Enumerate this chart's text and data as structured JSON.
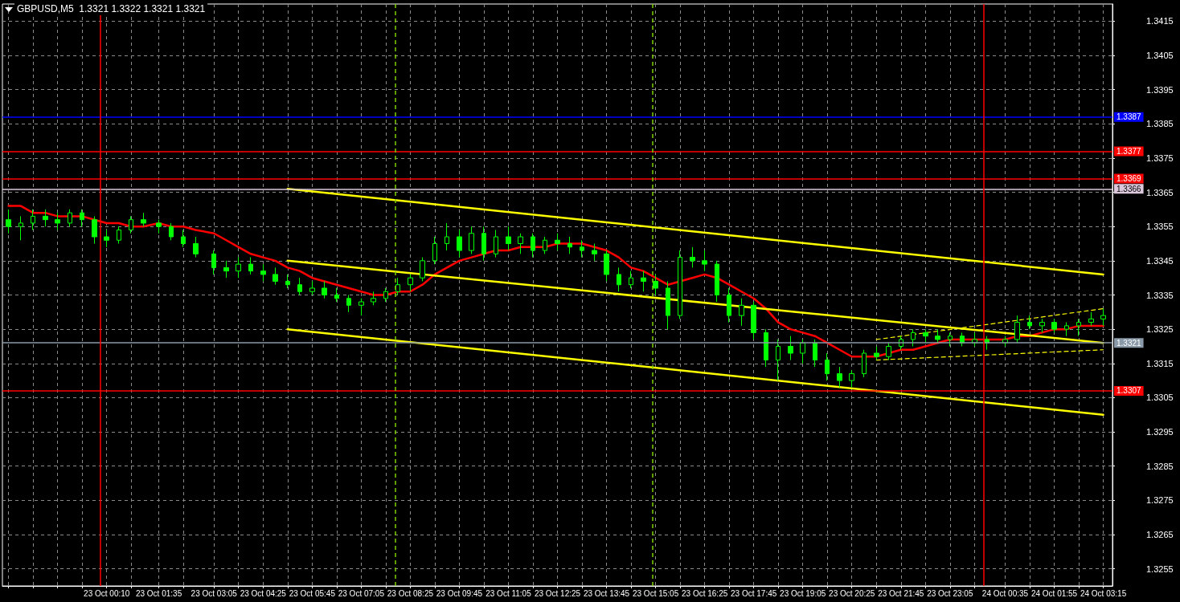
{
  "chart_data": {
    "type": "candlestick",
    "title": "GBPUSD,M5  1.3321 1.3322 1.3321 1.3321",
    "color": "#00ff00",
    "grid": true,
    "marker": "none",
    "x": [
      "--10-22T21:30",
      "--10-22T21:50",
      "--10-22T22:10",
      "--10-22T22:30",
      "--10-22T22:50",
      "--10-22T23:10",
      "--10-22T23:30",
      "--10-22T23:50",
      "--10-23T00:10",
      "--10-23T00:30",
      "--10-23T00:50",
      "--10-23T01:10",
      "--10-23T01:35",
      "--10-23T01:55",
      "--10-23T02:15",
      "--10-23T02:35",
      "--10-23T03:05",
      "--10-23T03:25",
      "--10-23T03:45",
      "--10-23T04:05",
      "--10-23T04:25",
      "--10-23T04:45",
      "--10-23T05:05",
      "--10-23T05:25",
      "--10-23T05:45",
      "--10-23T06:05",
      "--10-23T06:25",
      "--10-23T06:45",
      "--10-23T07:05",
      "--10-23T07:25",
      "--10-23T07:45",
      "--10-23T08:05",
      "--10-23T08:25",
      "--10-23T08:45",
      "--10-23T09:05",
      "--10-23T09:25",
      "--10-23T09:45",
      "--10-23T10:05",
      "--10-23T10:25",
      "--10-23T10:45",
      "--10-23T11:05",
      "--10-23T11:25",
      "--10-23T11:45",
      "--10-23T12:05",
      "--10-23T12:25",
      "--10-23T12:45",
      "--10-23T13:05",
      "--10-23T13:25",
      "--10-23T13:45",
      "--10-23T14:05",
      "--10-23T14:25",
      "--10-23T14:45",
      "--10-23T15:05",
      "--10-23T15:25",
      "--10-23T15:45",
      "--10-23T16:05",
      "--10-23T16:25",
      "--10-23T16:45",
      "--10-23T17:05",
      "--10-23T17:25",
      "--10-23T17:45",
      "--10-23T18:05",
      "--10-23T18:25",
      "--10-23T18:45",
      "--10-23T19:05",
      "--10-23T19:25",
      "--10-23T19:45",
      "--10-23T20:05",
      "--10-23T20:25",
      "--10-23T20:45",
      "--10-23T21:05",
      "--10-23T21:25",
      "--10-23T21:45",
      "--10-23T22:05",
      "--10-23T22:25",
      "--10-23T22:45",
      "--10-23T23:05",
      "--10-23T23:25",
      "--10-23T23:45",
      "--10-24T00:05",
      "--10-24T00:35",
      "--10-24T00:55",
      "--10-24T01:15",
      "--10-24T01:35",
      "--10-24T01:55",
      "--10-24T02:15",
      "--10-24T02:35",
      "--10-24T02:55",
      "--10-24T03:15"
    ],
    "ohlc": [
      [
        1.3357,
        1.336,
        1.3353,
        1.3355
      ],
      [
        1.3355,
        1.3358,
        1.3351,
        1.3356
      ],
      [
        1.3356,
        1.336,
        1.3354,
        1.3358
      ],
      [
        1.3358,
        1.336,
        1.3355,
        1.3357
      ],
      [
        1.3357,
        1.3359,
        1.3354,
        1.3356
      ],
      [
        1.3356,
        1.336,
        1.3355,
        1.3359
      ],
      [
        1.3359,
        1.336,
        1.3355,
        1.3357
      ],
      [
        1.3357,
        1.3358,
        1.335,
        1.3352
      ],
      [
        1.3352,
        1.3354,
        1.3349,
        1.3351
      ],
      [
        1.3351,
        1.3355,
        1.335,
        1.3354
      ],
      [
        1.3354,
        1.3358,
        1.3353,
        1.3357
      ],
      [
        1.3357,
        1.3359,
        1.3355,
        1.3356
      ],
      [
        1.3356,
        1.3357,
        1.3353,
        1.3355
      ],
      [
        1.3355,
        1.3356,
        1.3351,
        1.3352
      ],
      [
        1.3352,
        1.3354,
        1.3349,
        1.335
      ],
      [
        1.335,
        1.3352,
        1.3346,
        1.3347
      ],
      [
        1.3347,
        1.3348,
        1.3341,
        1.3343
      ],
      [
        1.3343,
        1.3345,
        1.334,
        1.3342
      ],
      [
        1.3342,
        1.3346,
        1.334,
        1.3344
      ],
      [
        1.3344,
        1.3346,
        1.3341,
        1.3342
      ],
      [
        1.3342,
        1.3344,
        1.3339,
        1.3341
      ],
      [
        1.3341,
        1.3343,
        1.3338,
        1.3339
      ],
      [
        1.3339,
        1.3341,
        1.3337,
        1.3338
      ],
      [
        1.3338,
        1.334,
        1.3335,
        1.3336
      ],
      [
        1.3336,
        1.3339,
        1.3335,
        1.3337
      ],
      [
        1.3337,
        1.3339,
        1.3334,
        1.3335
      ],
      [
        1.3335,
        1.3337,
        1.3333,
        1.3334
      ],
      [
        1.3334,
        1.3335,
        1.333,
        1.3332
      ],
      [
        1.3332,
        1.3334,
        1.3329,
        1.3333
      ],
      [
        1.3333,
        1.3336,
        1.3332,
        1.3334
      ],
      [
        1.3334,
        1.3337,
        1.3333,
        1.3336
      ],
      [
        1.3336,
        1.334,
        1.3335,
        1.3338
      ],
      [
        1.3338,
        1.3341,
        1.3336,
        1.334
      ],
      [
        1.334,
        1.3346,
        1.3339,
        1.3345
      ],
      [
        1.3345,
        1.3352,
        1.3344,
        1.335
      ],
      [
        1.335,
        1.3356,
        1.3348,
        1.3352
      ],
      [
        1.3352,
        1.3354,
        1.3346,
        1.3348
      ],
      [
        1.3348,
        1.3355,
        1.3347,
        1.3353
      ],
      [
        1.3353,
        1.3355,
        1.3345,
        1.3347
      ],
      [
        1.3347,
        1.3354,
        1.3346,
        1.3352
      ],
      [
        1.3352,
        1.3355,
        1.3348,
        1.335
      ],
      [
        1.335,
        1.3353,
        1.3347,
        1.3352
      ],
      [
        1.3352,
        1.3353,
        1.3346,
        1.3348
      ],
      [
        1.3348,
        1.3352,
        1.3347,
        1.3351
      ],
      [
        1.3351,
        1.3353,
        1.3348,
        1.335
      ],
      [
        1.335,
        1.3352,
        1.3347,
        1.3349
      ],
      [
        1.3349,
        1.3351,
        1.3346,
        1.3348
      ],
      [
        1.3348,
        1.335,
        1.3345,
        1.3347
      ],
      [
        1.3347,
        1.3348,
        1.3339,
        1.3341
      ],
      [
        1.3341,
        1.3343,
        1.3336,
        1.3338
      ],
      [
        1.3338,
        1.3342,
        1.3337,
        1.334
      ],
      [
        1.334,
        1.3342,
        1.3336,
        1.3339
      ],
      [
        1.3339,
        1.3341,
        1.3335,
        1.3337
      ],
      [
        1.3337,
        1.3339,
        1.3325,
        1.3329
      ],
      [
        1.3329,
        1.3348,
        1.3328,
        1.3346
      ],
      [
        1.3346,
        1.3349,
        1.3343,
        1.3345
      ],
      [
        1.3345,
        1.3348,
        1.3342,
        1.3344
      ],
      [
        1.3344,
        1.3345,
        1.3333,
        1.3335
      ],
      [
        1.3335,
        1.3337,
        1.3327,
        1.3329
      ],
      [
        1.3329,
        1.3334,
        1.3326,
        1.3332
      ],
      [
        1.3332,
        1.3333,
        1.3322,
        1.3324
      ],
      [
        1.3324,
        1.3325,
        1.3314,
        1.3316
      ],
      [
        1.3316,
        1.3322,
        1.331,
        1.332
      ],
      [
        1.332,
        1.3323,
        1.3316,
        1.3318
      ],
      [
        1.3318,
        1.3322,
        1.3315,
        1.3321
      ],
      [
        1.3321,
        1.3322,
        1.3314,
        1.3316
      ],
      [
        1.3316,
        1.3318,
        1.331,
        1.3312
      ],
      [
        1.3312,
        1.3314,
        1.3308,
        1.331
      ],
      [
        1.331,
        1.3313,
        1.3308,
        1.3312
      ],
      [
        1.3312,
        1.3319,
        1.3311,
        1.3318
      ],
      [
        1.3318,
        1.332,
        1.3316,
        1.3317
      ],
      [
        1.3317,
        1.3321,
        1.3316,
        1.332
      ],
      [
        1.332,
        1.3323,
        1.3319,
        1.3322
      ],
      [
        1.3322,
        1.3325,
        1.332,
        1.3324
      ],
      [
        1.3324,
        1.3325,
        1.3321,
        1.3323
      ],
      [
        1.3323,
        1.3325,
        1.3321,
        1.3322
      ],
      [
        1.3322,
        1.3324,
        1.332,
        1.3323
      ],
      [
        1.3323,
        1.3324,
        1.332,
        1.3321
      ],
      [
        1.3321,
        1.3324,
        1.332,
        1.3322
      ],
      [
        1.3322,
        1.3323,
        1.3319,
        1.3321
      ],
      [
        1.3321,
        1.3323,
        1.332,
        1.3322
      ],
      [
        1.3322,
        1.3329,
        1.3321,
        1.3327
      ],
      [
        1.3327,
        1.3329,
        1.3325,
        1.3326
      ],
      [
        1.3326,
        1.3328,
        1.3324,
        1.3327
      ],
      [
        1.3327,
        1.3328,
        1.3324,
        1.3325
      ],
      [
        1.3325,
        1.3327,
        1.3323,
        1.3326
      ],
      [
        1.3326,
        1.3328,
        1.3323,
        1.3327
      ],
      [
        1.3327,
        1.333,
        1.3326,
        1.3328
      ],
      [
        1.3328,
        1.3331,
        1.3326,
        1.3329
      ]
    ],
    "series": [
      {
        "type": "line",
        "color": "#ff0000",
        "line_style": "solid",
        "values": [
          1.3361,
          1.3361,
          1.3359,
          1.3359,
          1.3358,
          1.3358,
          1.3358,
          1.3357,
          1.3356,
          1.3356,
          1.3355,
          1.3355,
          1.3356,
          1.3355,
          1.3355,
          1.3354,
          1.3353,
          1.3351,
          1.3349,
          1.3347,
          1.3346,
          1.3345,
          1.3343,
          1.3342,
          1.334,
          1.3339,
          1.3338,
          1.3337,
          1.3336,
          1.3335,
          1.3335,
          1.3336,
          1.3336,
          1.3338,
          1.3341,
          1.3343,
          1.3345,
          1.3346,
          1.3347,
          1.3348,
          1.3348,
          1.3349,
          1.3349,
          1.3349,
          1.335,
          1.335,
          1.335,
          1.3349,
          1.3348,
          1.3346,
          1.3343,
          1.3342,
          1.334,
          1.3338,
          1.3339,
          1.334,
          1.3341,
          1.334,
          1.3338,
          1.3336,
          1.3334,
          1.3331,
          1.3327,
          1.3325,
          1.3324,
          1.3323,
          1.3321,
          1.3319,
          1.3317,
          1.3317,
          1.3317,
          1.3318,
          1.3319,
          1.3319,
          1.332,
          1.3321,
          1.3322,
          1.3322,
          1.3322,
          1.3322,
          1.3322,
          1.3323,
          1.3323,
          1.3324,
          1.3325,
          1.3325,
          1.3326,
          1.3326,
          1.3326
        ]
      },
      {
        "type": "line",
        "color": "#ffff00",
        "line_style": "solid",
        "x": [
          "--10-23T05:05",
          "--10-24T03:15"
        ],
        "values": [
          1.3366,
          1.3341
        ]
      },
      {
        "type": "line",
        "color": "#ffff00",
        "line_style": "solid",
        "x": [
          "--10-23T05:05",
          "--10-24T03:15"
        ],
        "values": [
          1.3345,
          1.3321
        ]
      },
      {
        "type": "line",
        "color": "#ffff00",
        "line_style": "solid",
        "x": [
          "--10-23T05:05",
          "--10-24T03:15"
        ],
        "values": [
          1.3325,
          1.33
        ]
      },
      {
        "type": "line",
        "color": "#ffff00",
        "line_style": "dashed",
        "x": [
          "--10-23T21:05",
          "--10-24T03:15"
        ],
        "values": [
          1.3322,
          1.3331
        ]
      },
      {
        "type": "line",
        "color": "#ffff00",
        "line_style": "dashed",
        "x": [
          "--10-23T21:05",
          "--10-24T03:15"
        ],
        "values": [
          1.3316,
          1.3319
        ]
      }
    ],
    "ref_lines": [
      {
        "axis": "y",
        "value": 1.3387,
        "label": "1.3387",
        "color": "#0000ff"
      },
      {
        "axis": "y",
        "value": 1.3377,
        "label": "1.3377",
        "color": "#ff0000"
      },
      {
        "axis": "y",
        "value": 1.3369,
        "label": "1.3369",
        "color": "#ff0000"
      },
      {
        "axis": "y",
        "value": 1.3366,
        "label": "1.3366",
        "color": "#dcc8dc"
      },
      {
        "axis": "y",
        "value": 1.3321,
        "label": "1.3321",
        "color": "#8a9aa8"
      },
      {
        "axis": "y",
        "value": 1.3307,
        "label": "1.3307",
        "color": "#ff0000"
      },
      {
        "axis": "x",
        "value": "--10-23T00:00",
        "color": "#ff0000"
      },
      {
        "axis": "x",
        "value": "--10-24T00:00",
        "color": "#ff0000"
      },
      {
        "axis": "x",
        "value": "--10-23T08:00",
        "color": "#7fd000",
        "line_style": "dashed"
      },
      {
        "axis": "x",
        "value": "--10-23T15:00",
        "color": "#7fd000",
        "line_style": "dashed"
      }
    ],
    "xlim": [
      "--10-22T21:20",
      "--10-24T03:30"
    ],
    "xticks": [
      {
        "value": "--10-22T21:30",
        "label": null
      },
      {
        "value": "--10-22T22:10",
        "label": null
      },
      {
        "value": "--10-22T22:50",
        "label": null
      },
      {
        "value": "--10-22T23:30",
        "label": null
      },
      {
        "value": "--10-23T00:10",
        "label": "23 Oct 00:10"
      },
      {
        "value": "--10-23T00:50",
        "label": null
      },
      {
        "value": "--10-23T01:35",
        "label": "23 Oct 01:35"
      },
      {
        "value": "--10-23T02:15",
        "label": null
      },
      {
        "value": "--10-23T03:05",
        "label": "23 Oct 03:05"
      },
      {
        "value": "--10-23T03:45",
        "label": null
      },
      {
        "value": "--10-23T04:25",
        "label": "23 Oct 04:25"
      },
      {
        "value": "--10-23T05:05",
        "label": null
      },
      {
        "value": "--10-23T05:45",
        "label": "23 Oct 05:45"
      },
      {
        "value": "--10-23T06:25",
        "label": null
      },
      {
        "value": "--10-23T07:05",
        "label": "23 Oct 07:05"
      },
      {
        "value": "--10-23T07:45",
        "label": null
      },
      {
        "value": "--10-23T08:25",
        "label": "23 Oct 08:25"
      },
      {
        "value": "--10-23T09:05",
        "label": null
      },
      {
        "value": "--10-23T09:45",
        "label": "23 Oct 09:45"
      },
      {
        "value": "--10-23T10:25",
        "label": null
      },
      {
        "value": "--10-23T11:05",
        "label": "23 Oct 11:05"
      },
      {
        "value": "--10-23T11:45",
        "label": null
      },
      {
        "value": "--10-23T12:25",
        "label": "23 Oct 12:25"
      },
      {
        "value": "--10-23T13:05",
        "label": null
      },
      {
        "value": "--10-23T13:45",
        "label": "23 Oct 13:45"
      },
      {
        "value": "--10-23T14:25",
        "label": null
      },
      {
        "value": "--10-23T15:05",
        "label": "23 Oct 15:05"
      },
      {
        "value": "--10-23T15:45",
        "label": null
      },
      {
        "value": "--10-23T16:25",
        "label": "23 Oct 16:25"
      },
      {
        "value": "--10-23T17:05",
        "label": null
      },
      {
        "value": "--10-23T17:45",
        "label": "23 Oct 17:45"
      },
      {
        "value": "--10-23T18:25",
        "label": null
      },
      {
        "value": "--10-23T19:05",
        "label": "23 Oct 19:05"
      },
      {
        "value": "--10-23T19:45",
        "label": null
      },
      {
        "value": "--10-23T20:25",
        "label": "23 Oct 20:25"
      },
      {
        "value": "--10-23T21:05",
        "label": null
      },
      {
        "value": "--10-23T21:45",
        "label": "23 Oct 21:45"
      },
      {
        "value": "--10-23T22:25",
        "label": null
      },
      {
        "value": "--10-23T23:05",
        "label": "23 Oct 23:05"
      },
      {
        "value": "--10-23T23:45",
        "label": null
      },
      {
        "value": "--10-24T00:35",
        "label": "24 Oct 00:35"
      },
      {
        "value": "--10-24T01:15",
        "label": null
      },
      {
        "value": "--10-24T01:55",
        "label": "24 Oct 01:55"
      },
      {
        "value": "--10-24T02:35",
        "label": null
      },
      {
        "value": "--10-24T03:15",
        "label": "24 Oct 03:15"
      }
    ],
    "ylim": [
      1.325,
      1.342
    ],
    "yticks": [
      1.3255,
      1.3265,
      1.3275,
      1.3285,
      1.3295,
      1.3305,
      1.3315,
      1.3325,
      1.3335,
      1.3345,
      1.3355,
      1.3365,
      1.3375,
      1.3385,
      1.3395,
      1.3405,
      1.3415
    ]
  }
}
